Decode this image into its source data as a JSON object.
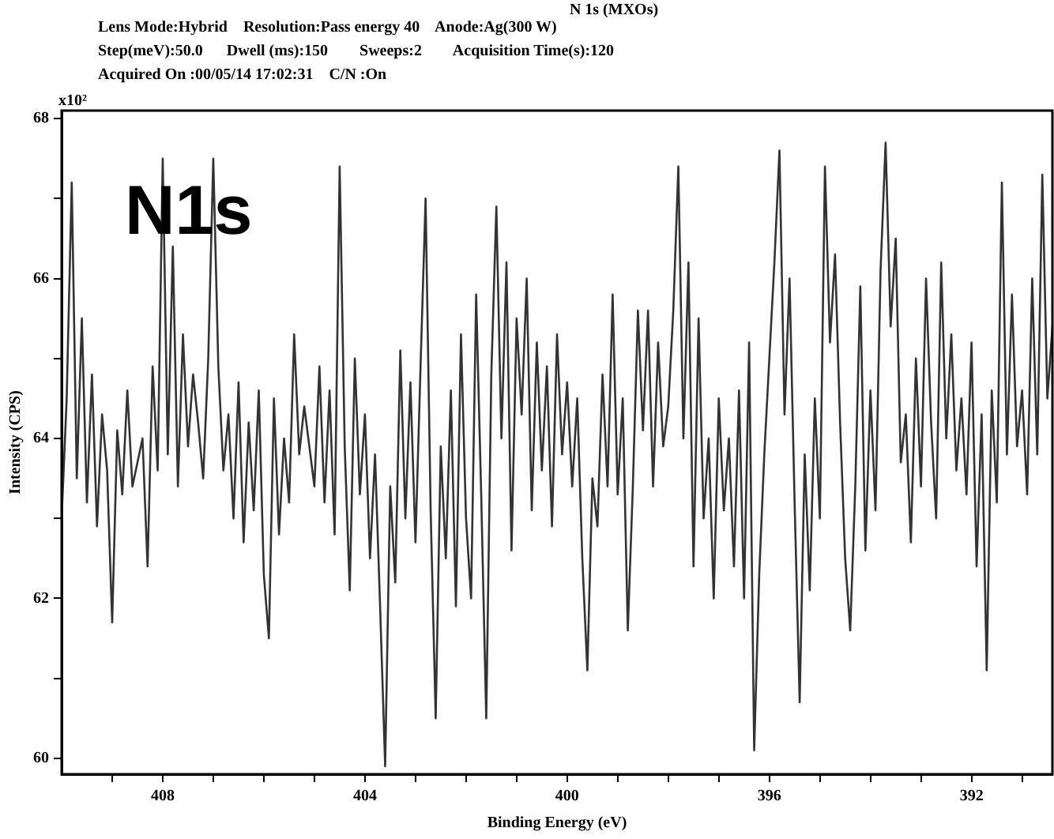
{
  "chart_data": {
    "type": "line",
    "title": "N 1s (MXOs)",
    "annotations": [
      "Lens Mode:Hybrid    Resolution:Pass energy 40    Anode:Ag(300 W)",
      "Step(meV):50.0      Dwell (ms):150        Sweeps:2        Acquisition Time(s):120",
      "Acquired On :00/05/14 17:02:31    C/N :On",
      "x10²",
      "N1s"
    ],
    "xlabel": "Binding Energy (eV)",
    "ylabel": "Intensity (CPS)",
    "xlim": [
      410,
      390.4
    ],
    "ylim": [
      59.8,
      68.1
    ],
    "xticks": [
      {
        "value": 409,
        "label": null
      },
      408,
      {
        "value": 407,
        "label": null
      },
      {
        "value": 406,
        "label": null
      },
      {
        "value": 405,
        "label": null
      },
      404,
      {
        "value": 403,
        "label": null
      },
      {
        "value": 402,
        "label": null
      },
      {
        "value": 401,
        "label": null
      },
      400,
      {
        "value": 399,
        "label": null
      },
      {
        "value": 398,
        "label": null
      },
      {
        "value": 397,
        "label": null
      },
      396,
      {
        "value": 395,
        "label": null
      },
      {
        "value": 394,
        "label": null
      },
      {
        "value": 393,
        "label": null
      },
      392,
      {
        "value": 391,
        "label": null
      }
    ],
    "yticks": [
      60,
      {
        "value": 61,
        "label": null
      },
      62,
      {
        "value": 63,
        "label": null
      },
      64,
      {
        "value": 65,
        "label": null
      },
      66,
      {
        "value": 67,
        "label": null
      },
      68
    ],
    "grid": false,
    "legend": false,
    "marker": "none",
    "line_style": "solid",
    "series": [
      {
        "color": "#333333",
        "x": [
          410.0,
          409.9,
          409.8,
          409.7,
          409.6,
          409.5,
          409.4,
          409.3,
          409.2,
          409.1,
          409.0,
          408.9,
          408.8,
          408.7,
          408.6,
          408.4,
          408.3,
          408.2,
          408.1,
          408.0,
          407.9,
          407.8,
          407.7,
          407.6,
          407.5,
          407.4,
          407.3,
          407.2,
          407.1,
          407.0,
          406.9,
          406.8,
          406.7,
          406.6,
          406.5,
          406.4,
          406.3,
          406.2,
          406.1,
          406.0,
          405.9,
          405.8,
          405.7,
          405.6,
          405.5,
          405.4,
          405.3,
          405.2,
          405.0,
          404.9,
          404.8,
          404.7,
          404.6,
          404.5,
          404.4,
          404.3,
          404.2,
          404.1,
          404.0,
          403.9,
          403.8,
          403.7,
          403.6,
          403.5,
          403.4,
          403.3,
          403.2,
          403.1,
          403.0,
          402.9,
          402.8,
          402.7,
          402.6,
          402.5,
          402.4,
          402.3,
          402.2,
          402.1,
          402.0,
          401.9,
          401.8,
          401.7,
          401.6,
          401.5,
          401.4,
          401.3,
          401.2,
          401.1,
          401.0,
          400.9,
          400.8,
          400.7,
          400.6,
          400.5,
          400.4,
          400.3,
          400.2,
          400.1,
          400.0,
          399.9,
          399.8,
          399.7,
          399.6,
          399.5,
          399.4,
          399.3,
          399.2,
          399.1,
          399.0,
          398.9,
          398.8,
          398.7,
          398.6,
          398.5,
          398.4,
          398.3,
          398.2,
          398.1,
          398.0,
          397.9,
          397.8,
          397.7,
          397.6,
          397.5,
          397.4,
          397.3,
          397.2,
          397.1,
          397.0,
          396.9,
          396.8,
          396.7,
          396.6,
          396.5,
          396.4,
          396.3,
          396.2,
          396.1,
          396.0,
          395.9,
          395.8,
          395.7,
          395.6,
          395.5,
          395.4,
          395.3,
          395.2,
          395.1,
          395.0,
          394.9,
          394.8,
          394.7,
          394.6,
          394.5,
          394.4,
          394.3,
          394.2,
          394.1,
          394.0,
          393.9,
          393.8,
          393.7,
          393.6,
          393.5,
          393.4,
          393.3,
          393.2,
          393.1,
          393.0,
          392.9,
          392.8,
          392.7,
          392.6,
          392.5,
          392.4,
          392.3,
          392.2,
          392.1,
          392.0,
          391.9,
          391.8,
          391.7,
          391.6,
          391.5,
          391.4,
          391.3,
          391.2,
          391.1,
          391.0,
          390.9,
          390.8,
          390.7,
          390.6,
          390.5,
          390.4
        ],
        "values": [
          63.0,
          64.5,
          67.2,
          63.5,
          65.5,
          63.2,
          64.8,
          62.9,
          64.3,
          63.6,
          61.7,
          64.1,
          63.3,
          64.6,
          63.4,
          64.0,
          62.4,
          64.9,
          63.6,
          67.5,
          63.8,
          66.4,
          63.4,
          65.3,
          63.9,
          64.8,
          64.2,
          63.5,
          65.0,
          67.5,
          64.9,
          63.6,
          64.3,
          63.0,
          64.7,
          62.7,
          64.2,
          63.1,
          64.6,
          62.3,
          61.5,
          64.5,
          62.8,
          64.0,
          63.2,
          65.3,
          63.8,
          64.4,
          63.4,
          64.9,
          63.2,
          64.6,
          62.8,
          67.4,
          63.9,
          62.1,
          65.0,
          63.3,
          64.3,
          62.5,
          63.8,
          61.9,
          59.9,
          63.4,
          62.2,
          65.1,
          63.0,
          64.7,
          62.7,
          64.9,
          67.0,
          63.1,
          60.5,
          63.9,
          62.5,
          64.6,
          61.9,
          65.3,
          63.0,
          62.0,
          65.8,
          63.3,
          60.5,
          64.8,
          66.9,
          64.0,
          66.2,
          62.6,
          65.5,
          64.3,
          66.0,
          63.1,
          65.2,
          63.6,
          64.9,
          62.9,
          65.3,
          63.8,
          64.7,
          63.4,
          64.5,
          62.5,
          61.1,
          63.5,
          62.9,
          64.8,
          63.4,
          65.8,
          63.3,
          64.5,
          61.6,
          63.4,
          65.6,
          64.1,
          65.6,
          63.4,
          65.2,
          63.9,
          64.4,
          65.6,
          67.4,
          64.0,
          66.2,
          62.4,
          65.5,
          63.0,
          64.0,
          62.0,
          64.5,
          63.1,
          64.0,
          62.4,
          64.6,
          62.0,
          65.2,
          60.1,
          62.3,
          63.8,
          65.0,
          66.2,
          67.6,
          64.3,
          66.0,
          63.2,
          60.7,
          63.8,
          62.1,
          64.5,
          63.0,
          67.4,
          65.2,
          66.3,
          64.2,
          62.5,
          61.6,
          63.4,
          65.9,
          62.6,
          64.6,
          63.1,
          66.1,
          67.7,
          65.4,
          66.5,
          63.7,
          64.3,
          62.7,
          65.0,
          63.4,
          66.0,
          64.2,
          63.0,
          66.2,
          64.0,
          65.3,
          63.6,
          64.5,
          63.3,
          65.2,
          62.4,
          64.3,
          61.1,
          64.6,
          63.2,
          67.2,
          63.8,
          65.8,
          63.9,
          64.6,
          63.3,
          66.0,
          63.8,
          67.3,
          64.5,
          65.4
        ]
      }
    ]
  }
}
